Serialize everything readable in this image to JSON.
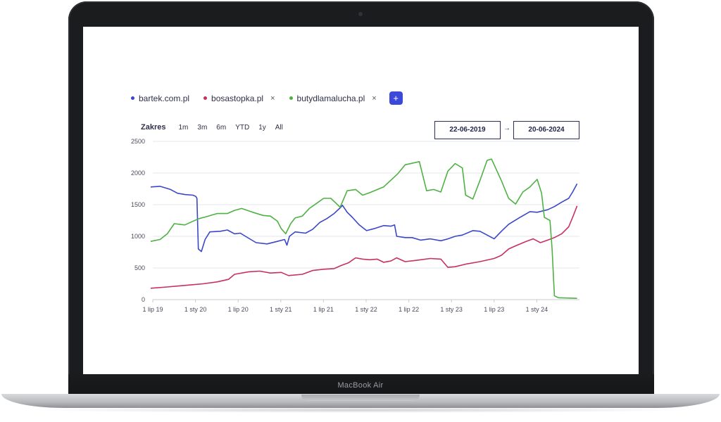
{
  "device": {
    "model_name": "MacBook Air"
  },
  "legend": {
    "items": [
      {
        "label": "bartek.com.pl",
        "color": "#3a47c8",
        "removable": false
      },
      {
        "label": "bosastopka.pl",
        "color": "#c8305f",
        "removable": true,
        "remove_icon": "×"
      },
      {
        "label": "butydlamalucha.pl",
        "color": "#4fb143",
        "removable": true,
        "remove_icon": "×"
      }
    ],
    "add_button": "+"
  },
  "range": {
    "label": "Zakres",
    "buttons": [
      "1m",
      "3m",
      "6m",
      "YTD",
      "1y",
      "All"
    ]
  },
  "dates": {
    "from": "22-06-2019",
    "arrow": "→",
    "to": "20-06-2024"
  },
  "colors": {
    "accent": "#3a49d9",
    "grid": "#e6e7ec"
  },
  "chart_data": {
    "type": "line",
    "x_ticks": [
      "1 lip 19",
      "1 sty 20",
      "1 lip 20",
      "1 sty 21",
      "1 lip 21",
      "1 sty 22",
      "1 lip 22",
      "1 sty 23",
      "1 lip 23",
      "1 sty 24"
    ],
    "ylim": [
      0,
      2500
    ],
    "y_ticks": [
      0,
      500,
      1000,
      1500,
      2000,
      2500
    ],
    "grid": true,
    "series": [
      {
        "name": "bartek.com.pl",
        "color": "#3a47c8",
        "points": [
          [
            "2019-06-22",
            1780
          ],
          [
            "2019-08-01",
            1790
          ],
          [
            "2019-09-15",
            1740
          ],
          [
            "2019-10-15",
            1680
          ],
          [
            "2019-11-15",
            1660
          ],
          [
            "2019-12-20",
            1650
          ],
          [
            "2020-01-01",
            1630
          ],
          [
            "2020-01-06",
            1600
          ],
          [
            "2020-01-12",
            800
          ],
          [
            "2020-01-25",
            760
          ],
          [
            "2020-02-10",
            950
          ],
          [
            "2020-03-01",
            1070
          ],
          [
            "2020-04-15",
            1080
          ],
          [
            "2020-05-15",
            1100
          ],
          [
            "2020-06-15",
            1040
          ],
          [
            "2020-07-10",
            1050
          ],
          [
            "2020-08-01",
            1000
          ],
          [
            "2020-09-15",
            900
          ],
          [
            "2020-11-01",
            880
          ],
          [
            "2020-12-15",
            920
          ],
          [
            "2021-01-15",
            950
          ],
          [
            "2021-01-25",
            860
          ],
          [
            "2021-02-05",
            1000
          ],
          [
            "2021-03-01",
            1070
          ],
          [
            "2021-04-15",
            1050
          ],
          [
            "2021-05-15",
            1110
          ],
          [
            "2021-06-15",
            1220
          ],
          [
            "2021-07-15",
            1280
          ],
          [
            "2021-08-15",
            1360
          ],
          [
            "2021-09-10",
            1450
          ],
          [
            "2021-09-20",
            1490
          ],
          [
            "2021-10-10",
            1380
          ],
          [
            "2021-11-01",
            1300
          ],
          [
            "2021-12-01",
            1180
          ],
          [
            "2022-01-01",
            1090
          ],
          [
            "2022-02-01",
            1120
          ],
          [
            "2022-03-15",
            1170
          ],
          [
            "2022-04-15",
            1160
          ],
          [
            "2022-05-01",
            1180
          ],
          [
            "2022-05-10",
            1000
          ],
          [
            "2022-06-15",
            980
          ],
          [
            "2022-07-15",
            980
          ],
          [
            "2022-08-20",
            940
          ],
          [
            "2022-10-01",
            960
          ],
          [
            "2022-11-15",
            930
          ],
          [
            "2022-12-15",
            960
          ],
          [
            "2023-01-15",
            1000
          ],
          [
            "2023-02-15",
            1020
          ],
          [
            "2023-04-01",
            1090
          ],
          [
            "2023-05-01",
            1080
          ],
          [
            "2023-06-01",
            1020
          ],
          [
            "2023-07-01",
            960
          ],
          [
            "2023-08-01",
            1080
          ],
          [
            "2023-09-01",
            1190
          ],
          [
            "2023-10-15",
            1290
          ],
          [
            "2023-12-01",
            1390
          ],
          [
            "2024-01-01",
            1380
          ],
          [
            "2024-02-15",
            1420
          ],
          [
            "2024-03-15",
            1470
          ],
          [
            "2024-04-15",
            1540
          ],
          [
            "2024-05-15",
            1600
          ],
          [
            "2024-06-01",
            1700
          ],
          [
            "2024-06-20",
            1830
          ]
        ]
      },
      {
        "name": "bosastopka.pl",
        "color": "#c8305f",
        "points": [
          [
            "2019-06-22",
            180
          ],
          [
            "2019-09-01",
            200
          ],
          [
            "2019-12-01",
            230
          ],
          [
            "2020-02-01",
            250
          ],
          [
            "2020-04-01",
            280
          ],
          [
            "2020-05-20",
            320
          ],
          [
            "2020-06-15",
            400
          ],
          [
            "2020-08-15",
            440
          ],
          [
            "2020-10-01",
            450
          ],
          [
            "2020-11-15",
            420
          ],
          [
            "2021-01-01",
            430
          ],
          [
            "2021-02-01",
            380
          ],
          [
            "2021-04-01",
            400
          ],
          [
            "2021-05-15",
            460
          ],
          [
            "2021-07-01",
            480
          ],
          [
            "2021-08-15",
            490
          ],
          [
            "2021-09-15",
            540
          ],
          [
            "2021-10-15",
            580
          ],
          [
            "2021-11-15",
            660
          ],
          [
            "2021-12-15",
            640
          ],
          [
            "2022-01-15",
            630
          ],
          [
            "2022-02-15",
            640
          ],
          [
            "2022-03-15",
            590
          ],
          [
            "2022-04-15",
            610
          ],
          [
            "2022-05-10",
            660
          ],
          [
            "2022-06-15",
            600
          ],
          [
            "2022-08-01",
            620
          ],
          [
            "2022-10-01",
            650
          ],
          [
            "2022-11-15",
            640
          ],
          [
            "2022-12-15",
            510
          ],
          [
            "2023-01-15",
            520
          ],
          [
            "2023-03-01",
            560
          ],
          [
            "2023-05-01",
            600
          ],
          [
            "2023-07-01",
            650
          ],
          [
            "2023-08-01",
            700
          ],
          [
            "2023-09-01",
            800
          ],
          [
            "2023-10-01",
            850
          ],
          [
            "2023-11-15",
            920
          ],
          [
            "2023-12-15",
            960
          ],
          [
            "2024-01-15",
            900
          ],
          [
            "2024-02-15",
            940
          ],
          [
            "2024-03-15",
            980
          ],
          [
            "2024-04-15",
            1040
          ],
          [
            "2024-05-15",
            1150
          ],
          [
            "2024-06-01",
            1300
          ],
          [
            "2024-06-20",
            1480
          ]
        ]
      },
      {
        "name": "butydlamalucha.pl",
        "color": "#4fb143",
        "points": [
          [
            "2019-06-22",
            920
          ],
          [
            "2019-08-01",
            950
          ],
          [
            "2019-09-01",
            1040
          ],
          [
            "2019-10-01",
            1200
          ],
          [
            "2019-11-15",
            1180
          ],
          [
            "2019-12-15",
            1230
          ],
          [
            "2020-01-15",
            1280
          ],
          [
            "2020-02-15",
            1310
          ],
          [
            "2020-04-01",
            1360
          ],
          [
            "2020-05-15",
            1360
          ],
          [
            "2020-06-15",
            1410
          ],
          [
            "2020-07-15",
            1440
          ],
          [
            "2020-09-01",
            1380
          ],
          [
            "2020-10-15",
            1330
          ],
          [
            "2020-11-15",
            1320
          ],
          [
            "2020-12-15",
            1240
          ],
          [
            "2021-01-01",
            1120
          ],
          [
            "2021-01-20",
            1040
          ],
          [
            "2021-02-10",
            1200
          ],
          [
            "2021-03-01",
            1290
          ],
          [
            "2021-04-01",
            1320
          ],
          [
            "2021-05-01",
            1440
          ],
          [
            "2021-06-01",
            1520
          ],
          [
            "2021-07-01",
            1600
          ],
          [
            "2021-08-01",
            1600
          ],
          [
            "2021-09-10",
            1460
          ],
          [
            "2021-10-10",
            1720
          ],
          [
            "2021-11-15",
            1740
          ],
          [
            "2021-12-15",
            1650
          ],
          [
            "2022-01-15",
            1690
          ],
          [
            "2022-03-15",
            1780
          ],
          [
            "2022-05-15",
            1990
          ],
          [
            "2022-06-15",
            2130
          ],
          [
            "2022-08-15",
            2180
          ],
          [
            "2022-09-15",
            1720
          ],
          [
            "2022-10-15",
            1740
          ],
          [
            "2022-11-15",
            1700
          ],
          [
            "2022-12-15",
            2030
          ],
          [
            "2023-01-15",
            2150
          ],
          [
            "2023-02-15",
            2080
          ],
          [
            "2023-03-01",
            1650
          ],
          [
            "2023-04-01",
            1590
          ],
          [
            "2023-05-01",
            1880
          ],
          [
            "2023-06-01",
            2200
          ],
          [
            "2023-06-20",
            2220
          ],
          [
            "2023-08-01",
            1880
          ],
          [
            "2023-09-01",
            1600
          ],
          [
            "2023-10-01",
            1510
          ],
          [
            "2023-11-01",
            1700
          ],
          [
            "2023-12-01",
            1780
          ],
          [
            "2024-01-01",
            1900
          ],
          [
            "2024-01-20",
            1680
          ],
          [
            "2024-02-01",
            1300
          ],
          [
            "2024-02-25",
            1250
          ],
          [
            "2024-03-05",
            800
          ],
          [
            "2024-03-15",
            60
          ],
          [
            "2024-04-01",
            30
          ],
          [
            "2024-06-20",
            20
          ]
        ]
      }
    ]
  }
}
